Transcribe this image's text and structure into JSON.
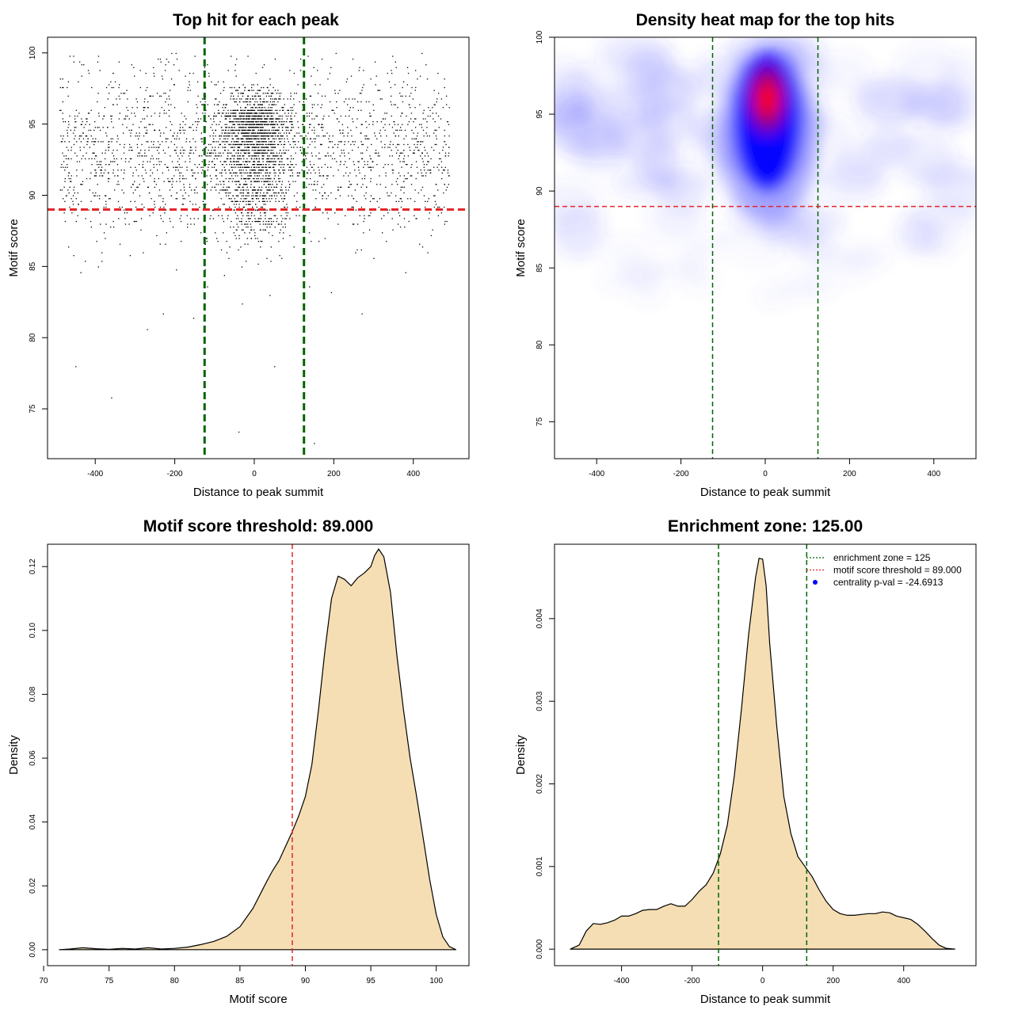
{
  "chart_data": [
    {
      "id": "scatter",
      "type": "scatter",
      "title": "Top hit for each peak",
      "xlabel": "Distance to peak summit",
      "ylabel": "Motif score",
      "xlim": [
        -520,
        540
      ],
      "ylim": [
        71.5,
        101.1
      ],
      "xticks": [
        -400,
        -200,
        0,
        200,
        400
      ],
      "yticks": [
        75,
        80,
        85,
        90,
        95,
        100
      ],
      "vlines": [
        -125,
        125
      ],
      "hline": 89,
      "points_note_generated": true,
      "point_count": 4000,
      "colors": {
        "points": "#000000",
        "vline": "#006400",
        "hline": "#e32626"
      }
    },
    {
      "id": "heatmap",
      "type": "heatmap",
      "title": "Density heat map for the top hits",
      "xlabel": "Distance to peak summit",
      "ylabel": "Motif score",
      "xlim": [
        -500,
        500
      ],
      "ylim": [
        72.6,
        100
      ],
      "xticks": [
        -400,
        -200,
        0,
        200,
        400
      ],
      "yticks": [
        75,
        80,
        85,
        90,
        95,
        100
      ],
      "vlines": [
        -125,
        125
      ],
      "hline": 89,
      "peak": {
        "x": 5,
        "y": 96
      },
      "colors": {
        "low": "#ffffff",
        "mid": "#0000ff",
        "high": "#ff0000",
        "vline": "#006400",
        "hline": "#e32626"
      }
    },
    {
      "id": "score-density",
      "type": "area",
      "title": "Motif score threshold: 89.000",
      "xlabel": "Motif score",
      "ylabel": "Density",
      "xlim": [
        70.3,
        102.5
      ],
      "ylim": [
        -0.005,
        0.127
      ],
      "xticks": [
        70,
        75,
        80,
        85,
        90,
        95,
        100
      ],
      "yticks": [
        0.0,
        0.02,
        0.04,
        0.06,
        0.08,
        0.1,
        0.12
      ],
      "ytick_labels": [
        "0.00",
        "0.02",
        "0.04",
        "0.06",
        "0.08",
        "0.10",
        "0.12"
      ],
      "vline": 89,
      "x": [
        71.2,
        72,
        73,
        74,
        75,
        76,
        77,
        78,
        79,
        80,
        81,
        82,
        83,
        84,
        85,
        86,
        86.5,
        87,
        87.5,
        88,
        88.5,
        89,
        89.5,
        90,
        90.5,
        91,
        91.5,
        92,
        92.5,
        93,
        93.5,
        94,
        94.5,
        95,
        95.3,
        95.6,
        96,
        96.5,
        97,
        97.5,
        98,
        98.5,
        99,
        99.5,
        100,
        100.5,
        101,
        101.5
      ],
      "y": [
        0.0,
        0.0002,
        0.0006,
        0.0003,
        0.0001,
        0.0004,
        0.0002,
        0.0006,
        0.0002,
        0.0004,
        0.0008,
        0.0016,
        0.0026,
        0.0042,
        0.0072,
        0.013,
        0.017,
        0.021,
        0.0248,
        0.028,
        0.0325,
        0.037,
        0.042,
        0.048,
        0.058,
        0.075,
        0.094,
        0.11,
        0.117,
        0.116,
        0.114,
        0.1165,
        0.118,
        0.12,
        0.1235,
        0.1255,
        0.123,
        0.112,
        0.092,
        0.075,
        0.06,
        0.048,
        0.035,
        0.022,
        0.011,
        0.004,
        0.001,
        0.0
      ],
      "colors": {
        "fill": "#f5deb3",
        "line": "#000000",
        "vline": "#e32626"
      }
    },
    {
      "id": "distance-density",
      "type": "area",
      "title": "Enrichment zone: 125.00",
      "xlabel": "Distance to peak summit",
      "ylabel": "Density",
      "xlim": [
        -590,
        605
      ],
      "ylim": [
        -0.0002,
        0.0049
      ],
      "xticks": [
        -400,
        -200,
        0,
        200,
        400
      ],
      "yticks": [
        0,
        0.001,
        0.002,
        0.003,
        0.004
      ],
      "ytick_labels": [
        "0.000",
        "0.001",
        "0.002",
        "0.003",
        "0.004"
      ],
      "vlines": [
        -125,
        125
      ],
      "x": [
        -545,
        -520,
        -500,
        -480,
        -460,
        -440,
        -420,
        -400,
        -380,
        -360,
        -340,
        -320,
        -300,
        -280,
        -260,
        -240,
        -220,
        -200,
        -180,
        -160,
        -140,
        -120,
        -100,
        -80,
        -60,
        -40,
        -20,
        -10,
        0,
        10,
        20,
        40,
        60,
        80,
        100,
        120,
        140,
        160,
        180,
        200,
        220,
        240,
        260,
        280,
        300,
        320,
        340,
        360,
        380,
        400,
        420,
        440,
        460,
        480,
        500,
        520,
        545
      ],
      "y": [
        0.0,
        5e-05,
        0.00022,
        0.00031,
        0.0003,
        0.00032,
        0.00035,
        0.0004,
        0.0004,
        0.00043,
        0.00047,
        0.00048,
        0.00048,
        0.00052,
        0.00055,
        0.00052,
        0.00052,
        0.0006,
        0.0007,
        0.00078,
        0.00092,
        0.00115,
        0.0015,
        0.0021,
        0.0029,
        0.0038,
        0.0045,
        0.00473,
        0.00472,
        0.0044,
        0.0037,
        0.0027,
        0.00185,
        0.0014,
        0.00112,
        0.001,
        0.00088,
        0.00072,
        0.00058,
        0.00048,
        0.00043,
        0.00041,
        0.00041,
        0.00042,
        0.00043,
        0.00043,
        0.00045,
        0.00044,
        0.0004,
        0.00038,
        0.00036,
        0.0003,
        0.00022,
        0.00013,
        5e-05,
        1e-05,
        0.0
      ],
      "legend": [
        {
          "label": "enrichment zone = 125",
          "color": "#006400",
          "kind": "line"
        },
        {
          "label": "motif score threshold = 89.000",
          "color": "#e32626",
          "kind": "line"
        },
        {
          "label": "centrality p-val = -24.6913",
          "color": "#0000ff",
          "kind": "point"
        }
      ],
      "legend_position": "top-right",
      "colors": {
        "fill": "#f5deb3",
        "line": "#000000",
        "vline": "#006400"
      }
    }
  ]
}
